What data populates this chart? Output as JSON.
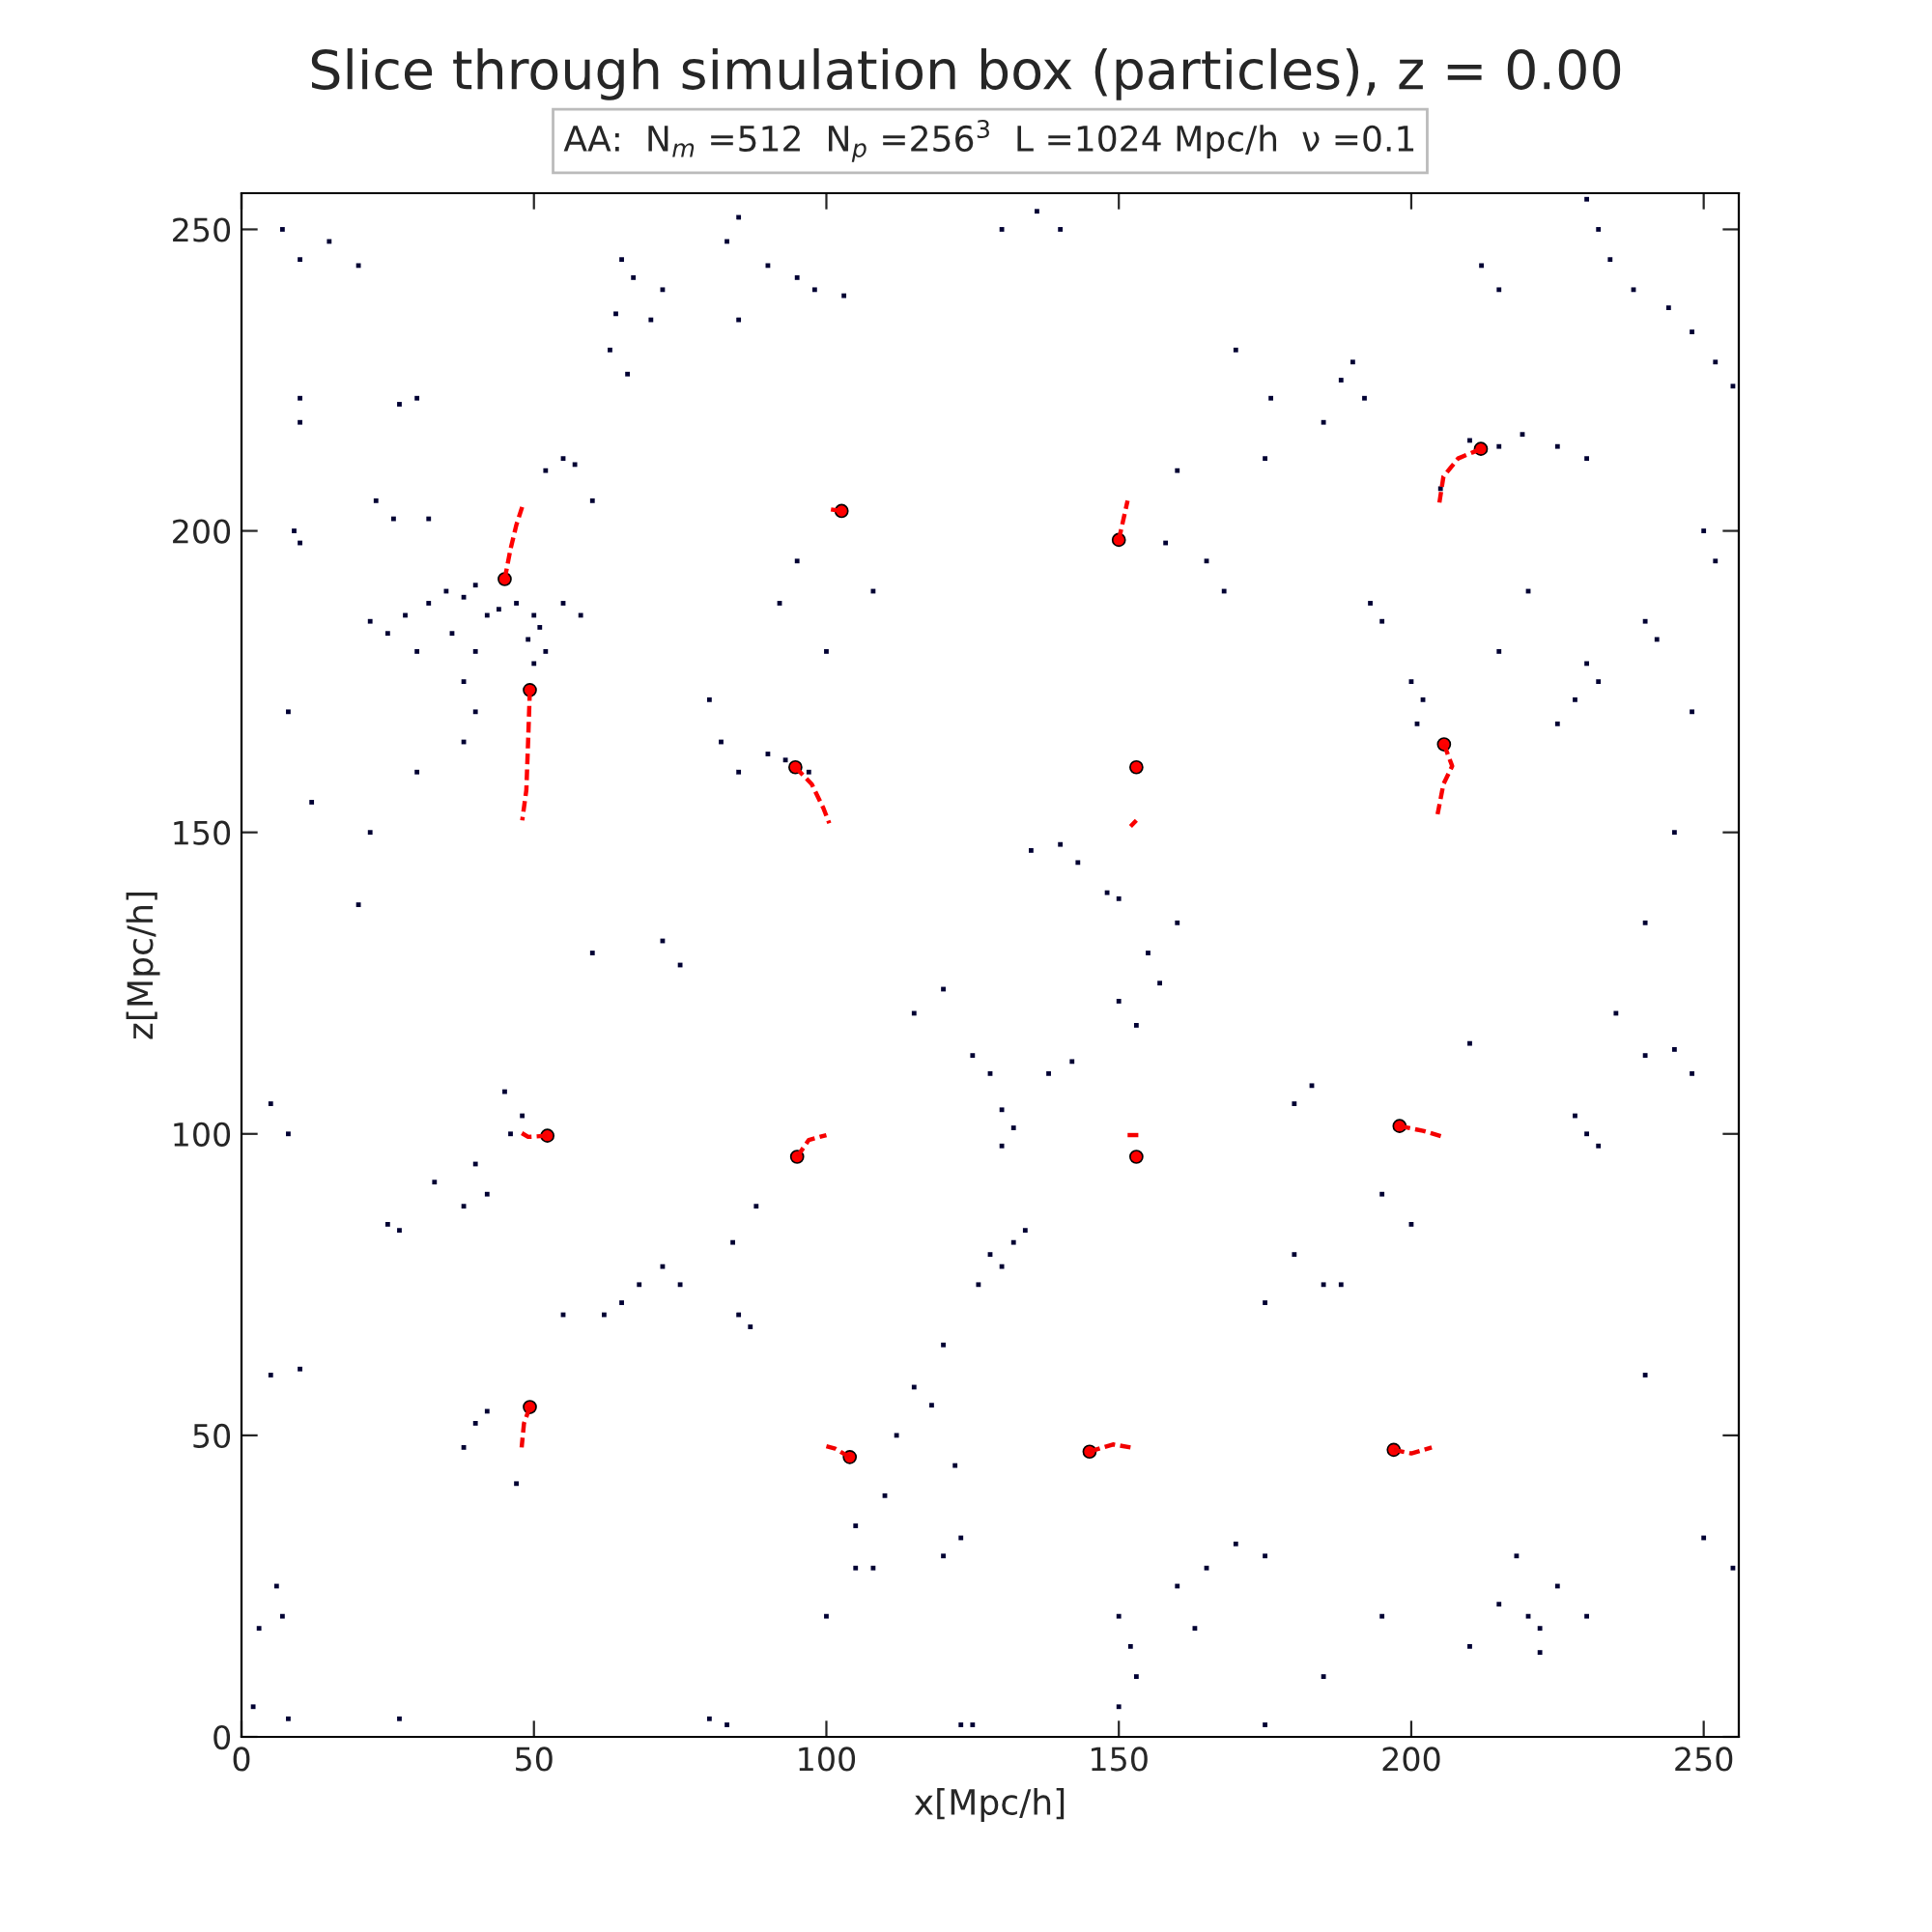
{
  "chart_data": {
    "type": "scatter",
    "title": "Slice through simulation box (particles), z = 0.00",
    "annotations": [
      "AA:  N$_{m}$ =512  N$_{p}$ =256$^{3}$  L =1024 Mpc/h  ν =0.1"
    ],
    "xlabel": "x[Mpc/h]",
    "ylabel": "z[Mpc/h]",
    "xlim": [
      0,
      256
    ],
    "ylim": [
      0,
      256
    ],
    "xticks": [
      0,
      50,
      100,
      150,
      200,
      250
    ],
    "yticks": [
      0,
      50,
      100,
      150,
      200,
      250
    ],
    "grid": false,
    "legend": false,
    "series": [
      {
        "marker": "square",
        "color": "#000033",
        "x": [
          7,
          10,
          15,
          20,
          10,
          10,
          9,
          10,
          27,
          30,
          23,
          26,
          32,
          22,
          25,
          28,
          32,
          35,
          38,
          40,
          42,
          44,
          40,
          38,
          36,
          30,
          40,
          38,
          50,
          51,
          49,
          52,
          55,
          58,
          47,
          50,
          55,
          57,
          52,
          60,
          65,
          67,
          64,
          63,
          66,
          70,
          72,
          85,
          83,
          90,
          95,
          98,
          103,
          85,
          130,
          140,
          136,
          95,
          92,
          108,
          100,
          80,
          82,
          85,
          90,
          93,
          97,
          140,
          143,
          135,
          148,
          150,
          155,
          160,
          150,
          153,
          157,
          115,
          120,
          125,
          128,
          130,
          132,
          130,
          138,
          142,
          60,
          72,
          75,
          45,
          48,
          46,
          40,
          38,
          33,
          42,
          25,
          27,
          62,
          65,
          68,
          72,
          75,
          85,
          87,
          88,
          84,
          128,
          130,
          132,
          134,
          126,
          120,
          115,
          118,
          112,
          110,
          122,
          123,
          105,
          108,
          120,
          123,
          125,
          150,
          152,
          153,
          150,
          160,
          165,
          170,
          175,
          163,
          215,
          220,
          222,
          225,
          222,
          218,
          210,
          230,
          185,
          188,
          180,
          175,
          195,
          200,
          230,
          232,
          228,
          240,
          245,
          248,
          235,
          210,
          200,
          202,
          201,
          215,
          230,
          232,
          228,
          225,
          220,
          240,
          242,
          250,
          252,
          248,
          230,
          232,
          234,
          238,
          244,
          248,
          252,
          255,
          210,
          215,
          219,
          225,
          230,
          205,
          188,
          190,
          192,
          185,
          176,
          170,
          175,
          160,
          158,
          165,
          168,
          195,
          193,
          215,
          212,
          180,
          183,
          5,
          8,
          5,
          10,
          6,
          7,
          3,
          2,
          8,
          27,
          40,
          42,
          38,
          47,
          55,
          30,
          22,
          12,
          8,
          20,
          80,
          83,
          100,
          105,
          175,
          185,
          240,
          250,
          255,
          195,
          245,
          240
        ],
        "values": [
          250,
          245,
          248,
          244,
          222,
          218,
          200,
          198,
          221,
          222,
          205,
          202,
          202,
          185,
          183,
          186,
          188,
          190,
          189,
          191,
          186,
          187,
          180,
          175,
          183,
          180,
          170,
          165,
          186,
          184,
          182,
          180,
          188,
          186,
          188,
          178,
          212,
          211,
          210,
          205,
          245,
          242,
          236,
          230,
          226,
          235,
          240,
          252,
          248,
          244,
          242,
          240,
          239,
          235,
          250,
          250,
          253,
          195,
          188,
          190,
          180,
          172,
          165,
          160,
          163,
          162,
          160,
          148,
          145,
          147,
          140,
          139,
          130,
          135,
          122,
          118,
          125,
          120,
          124,
          113,
          110,
          104,
          101,
          98,
          110,
          112,
          130,
          132,
          128,
          107,
          103,
          100,
          95,
          88,
          92,
          90,
          85,
          84,
          70,
          72,
          75,
          78,
          75,
          70,
          68,
          88,
          82,
          80,
          78,
          82,
          84,
          75,
          65,
          58,
          55,
          50,
          40,
          45,
          33,
          28,
          28,
          30,
          2,
          2,
          20,
          15,
          10,
          5,
          25,
          28,
          32,
          30,
          18,
          22,
          20,
          18,
          25,
          14,
          30,
          15,
          20,
          75,
          75,
          80,
          72,
          90,
          85,
          100,
          98,
          103,
          113,
          114,
          110,
          120,
          115,
          175,
          172,
          168,
          180,
          178,
          175,
          172,
          168,
          190,
          185,
          182,
          200,
          195,
          170,
          255,
          250,
          245,
          240,
          237,
          233,
          228,
          224,
          215,
          214,
          216,
          214,
          212,
          207,
          225,
          228,
          222,
          218,
          222,
          230,
          212,
          210,
          198,
          195,
          190,
          185,
          188,
          240,
          244,
          105,
          108,
          105,
          100,
          60,
          61,
          25,
          20,
          18,
          5,
          3,
          3,
          52,
          54,
          48,
          42,
          70,
          160,
          150,
          155,
          170,
          138,
          3,
          2,
          20,
          35,
          2,
          10,
          60,
          33,
          28,
          20,
          150,
          135
        ]
      },
      {
        "type": "line",
        "line_style": "dashed",
        "color": "#ff0000",
        "x": [
          45,
          46,
          47,
          48
        ],
        "values": [
          192,
          197,
          201,
          204
        ]
      },
      {
        "type": "line",
        "line_style": "dashed",
        "color": "#fe0000",
        "x": [
          49.3,
          49,
          48.7,
          48
        ],
        "values": [
          173.6,
          165,
          157,
          152
        ]
      },
      {
        "type": "line",
        "line_style": "dashed",
        "color": "#fd0000",
        "x": [
          102.6,
          100.5
        ],
        "values": [
          203.3,
          203.6
        ]
      },
      {
        "type": "line",
        "line_style": "dashed",
        "color": "#fc0000",
        "x": [
          94.7,
          97.5,
          99.5,
          100.5
        ],
        "values": [
          160.8,
          158,
          154,
          151.5
        ]
      },
      {
        "type": "line",
        "line_style": "dashed",
        "color": "#fb0000",
        "x": [
          150,
          151.5
        ],
        "values": [
          198.5,
          205
        ]
      },
      {
        "type": "line",
        "line_style": "dashed",
        "color": "#fa0000",
        "x": [
          153,
          152
        ],
        "values": [
          152,
          151
        ]
      },
      {
        "type": "line",
        "line_style": "dashed",
        "color": "#f90000",
        "x": [
          211.9,
          208,
          205.5,
          204.7
        ],
        "values": [
          213.6,
          212,
          209,
          204
        ]
      },
      {
        "type": "line",
        "line_style": "dashed",
        "color": "#f80000",
        "x": [
          205.6,
          207,
          205.5,
          204.5
        ],
        "values": [
          164.6,
          161,
          158,
          153
        ]
      },
      {
        "type": "line",
        "line_style": "dashed",
        "color": "#f70000",
        "x": [
          52.3,
          49,
          47.3
        ],
        "values": [
          99.7,
          99.5,
          100.5
        ]
      },
      {
        "type": "line",
        "line_style": "dashed",
        "color": "#f60000",
        "x": [
          95,
          97,
          100
        ],
        "values": [
          96.2,
          99,
          99.8
        ]
      },
      {
        "type": "line",
        "line_style": "dashed",
        "color": "#f50000",
        "x": [
          151.5,
          153.5
        ],
        "values": [
          99.8,
          99.8
        ]
      },
      {
        "type": "line",
        "line_style": "dashed",
        "color": "#f40000",
        "x": [
          198,
          202,
          205.5
        ],
        "values": [
          101.3,
          100.5,
          99.5
        ]
      },
      {
        "type": "line",
        "line_style": "dashed",
        "color": "#f30000",
        "x": [
          49.3,
          48.3,
          47.9
        ],
        "values": [
          54.7,
          52,
          48
        ]
      },
      {
        "type": "line",
        "line_style": "dashed",
        "color": "#f20000",
        "x": [
          104,
          101.5,
          100
        ],
        "values": [
          46.4,
          47.8,
          48.2
        ]
      },
      {
        "type": "line",
        "line_style": "dashed",
        "color": "#f10000",
        "x": [
          145,
          149,
          152
        ],
        "values": [
          47.3,
          48.5,
          48
        ]
      },
      {
        "type": "line",
        "line_style": "dashed",
        "color": "#f00000",
        "x": [
          197,
          200,
          203.5
        ],
        "values": [
          47.6,
          47,
          48
        ]
      },
      {
        "marker": "circle",
        "color": "#ff0000",
        "x": [
          45,
          49.3,
          102.6,
          94.7,
          150,
          153,
          211.9,
          205.6,
          52.3,
          95,
          153,
          198,
          49.3,
          104,
          145,
          197
        ],
        "values": [
          192,
          173.6,
          203.3,
          160.8,
          198.5,
          160.8,
          213.6,
          164.6,
          99.7,
          96.2,
          96.2,
          101.3,
          54.7,
          46.4,
          47.3,
          47.6
        ]
      }
    ]
  }
}
